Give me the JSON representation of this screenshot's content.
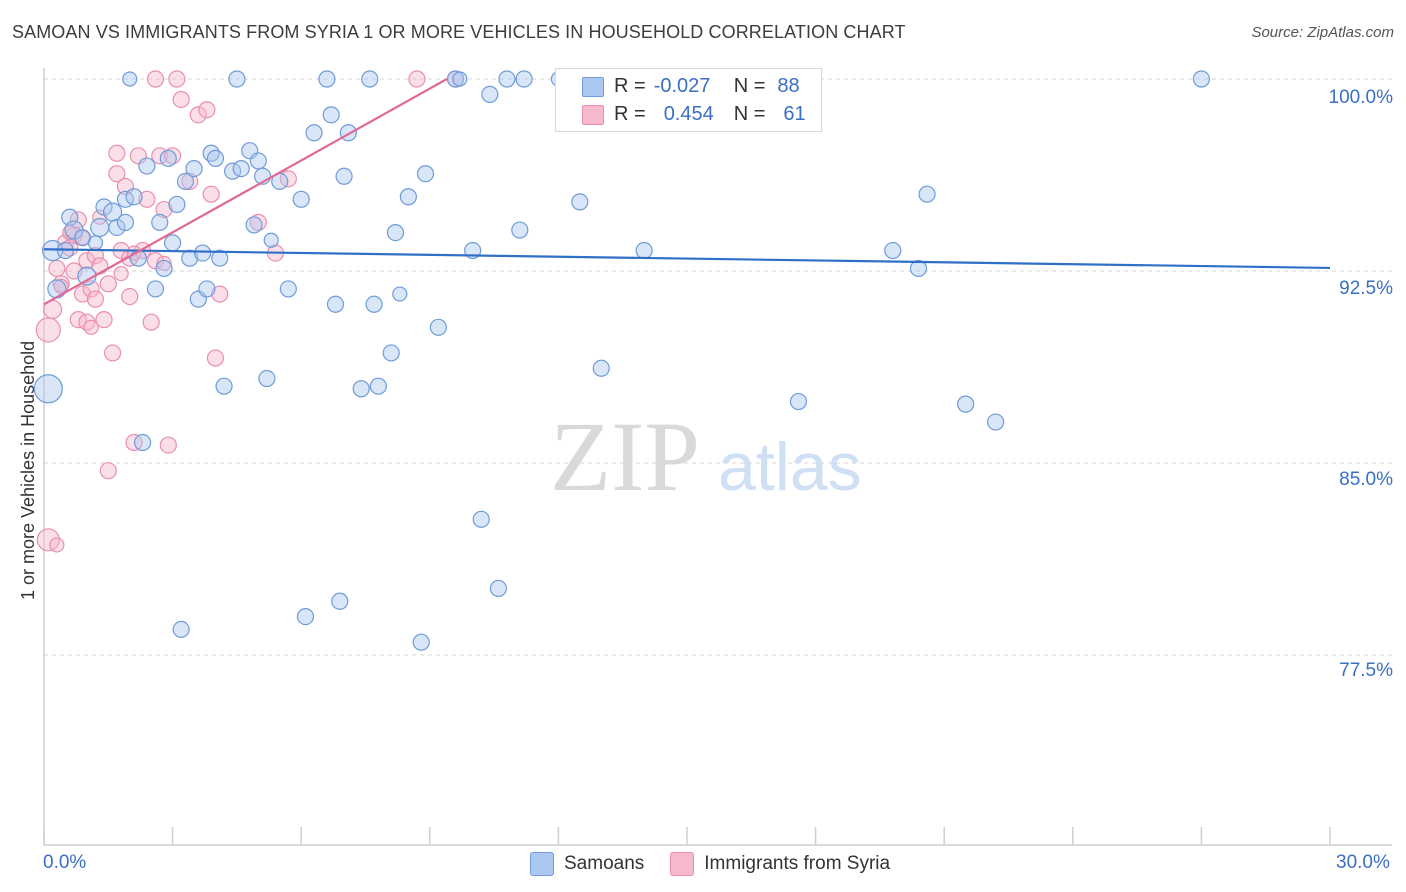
{
  "title": "SAMOAN VS IMMIGRANTS FROM SYRIA 1 OR MORE VEHICLES IN HOUSEHOLD CORRELATION CHART",
  "source": "Source: ZipAtlas.com",
  "watermark": {
    "zip": "ZIP",
    "atlas": "atlas"
  },
  "legend": {
    "r_label": "R =",
    "n_label": "N =",
    "samoans": {
      "r": "-0.027",
      "n": "88"
    },
    "syria": {
      "r": "0.454",
      "n": "61"
    }
  },
  "bottom_legend": {
    "samoans": "Samoans",
    "syria": "Immigrants from Syria"
  },
  "colors": {
    "samoans_fill": "#aac8f0",
    "samoans_stroke": "#6f9bd9",
    "samoans_line": "#2f6fc7",
    "syria_fill": "#f7b9cc",
    "syria_stroke": "#ea8fac",
    "syria_line": "#e06a95",
    "tick_text": "#3a6fc4",
    "grid": "#d4d4d4"
  },
  "chart_data": {
    "type": "scatter",
    "title": "SAMOAN VS IMMIGRANTS FROM SYRIA 1 OR MORE VEHICLES IN HOUSEHOLD CORRELATION CHART",
    "xlabel": "",
    "ylabel": "1 or more Vehicles in Household",
    "xlim": [
      0,
      30
    ],
    "ylim": [
      70.0,
      100.6
    ],
    "x_tick_labels": [
      "0.0%",
      "30.0%"
    ],
    "y_ticks": [
      77.5,
      85.0,
      92.5,
      100.0
    ],
    "y_tick_labels": [
      "77.5%",
      "85.0%",
      "92.5%",
      "100.0%"
    ],
    "grid": "horizontal dashed",
    "legend_position": "top-center",
    "series": [
      {
        "name": "Samoans",
        "trend": {
          "x0": 0.0,
          "y0": 93.35,
          "x1": 30.0,
          "y1": 92.62
        },
        "points": [
          [
            0.2,
            93.3,
            10
          ],
          [
            0.3,
            91.8,
            9
          ],
          [
            0.5,
            93.3,
            8
          ],
          [
            0.6,
            94.6,
            8
          ],
          [
            0.7,
            94.1,
            9
          ],
          [
            0.9,
            93.8,
            8
          ],
          [
            1.0,
            92.3,
            9
          ],
          [
            1.3,
            94.2,
            9
          ],
          [
            1.4,
            95.0,
            8
          ],
          [
            1.6,
            94.8,
            9
          ],
          [
            1.7,
            94.2,
            8
          ],
          [
            1.9,
            95.3,
            8
          ],
          [
            1.9,
            94.4,
            8
          ],
          [
            2.1,
            95.4,
            8
          ],
          [
            2.2,
            93.0,
            8
          ],
          [
            2.3,
            85.8,
            8
          ],
          [
            2.4,
            96.6,
            8
          ],
          [
            2.6,
            91.8,
            8
          ],
          [
            2.7,
            94.4,
            8
          ],
          [
            2.8,
            92.6,
            8
          ],
          [
            2.9,
            96.9,
            8
          ],
          [
            3.0,
            93.6,
            8
          ],
          [
            3.1,
            95.1,
            8
          ],
          [
            3.2,
            78.5,
            8
          ],
          [
            3.3,
            96.0,
            8
          ],
          [
            3.4,
            93.0,
            8
          ],
          [
            3.5,
            96.5,
            8
          ],
          [
            3.6,
            91.4,
            8
          ],
          [
            3.7,
            93.2,
            8
          ],
          [
            3.8,
            91.8,
            8
          ],
          [
            3.9,
            97.1,
            8
          ],
          [
            4.0,
            96.9,
            8
          ],
          [
            4.1,
            93.0,
            8
          ],
          [
            4.2,
            88.0,
            8
          ],
          [
            4.4,
            96.4,
            8
          ],
          [
            4.5,
            100.0,
            8
          ],
          [
            4.6,
            96.5,
            8
          ],
          [
            4.8,
            97.2,
            8
          ],
          [
            4.9,
            94.3,
            8
          ],
          [
            5.0,
            96.8,
            8
          ],
          [
            5.1,
            96.2,
            8
          ],
          [
            5.2,
            88.3,
            8
          ],
          [
            5.5,
            96.0,
            8
          ],
          [
            5.7,
            91.8,
            8
          ],
          [
            6.0,
            95.3,
            8
          ],
          [
            6.1,
            79.0,
            8
          ],
          [
            6.3,
            97.9,
            8
          ],
          [
            6.6,
            100.0,
            8
          ],
          [
            6.7,
            98.6,
            8
          ],
          [
            6.8,
            91.2,
            8
          ],
          [
            6.9,
            79.6,
            8
          ],
          [
            7.0,
            96.2,
            8
          ],
          [
            7.1,
            97.9,
            8
          ],
          [
            7.4,
            87.9,
            8
          ],
          [
            7.6,
            100.0,
            8
          ],
          [
            7.7,
            91.2,
            8
          ],
          [
            7.8,
            88.0,
            8
          ],
          [
            8.1,
            89.3,
            8
          ],
          [
            8.2,
            94.0,
            8
          ],
          [
            8.5,
            95.4,
            8
          ],
          [
            8.8,
            78.0,
            8
          ],
          [
            8.9,
            96.3,
            8
          ],
          [
            9.2,
            90.3,
            8
          ],
          [
            9.6,
            100.0,
            8
          ],
          [
            10.0,
            93.3,
            8
          ],
          [
            10.2,
            82.8,
            8
          ],
          [
            10.4,
            99.4,
            8
          ],
          [
            10.6,
            80.1,
            8
          ],
          [
            10.8,
            100.0,
            8
          ],
          [
            11.1,
            94.1,
            8
          ],
          [
            11.2,
            100.0,
            8
          ],
          [
            12.5,
            95.2,
            8
          ],
          [
            13.0,
            88.7,
            8
          ],
          [
            14.0,
            93.3,
            8
          ],
          [
            17.6,
            87.4,
            8
          ],
          [
            19.8,
            93.3,
            8
          ],
          [
            20.4,
            92.6,
            8
          ],
          [
            20.6,
            95.5,
            8
          ],
          [
            21.5,
            87.3,
            8
          ],
          [
            22.2,
            86.6,
            8
          ],
          [
            27.0,
            100.0,
            8
          ],
          [
            0.1,
            87.9,
            14
          ],
          [
            1.2,
            93.6,
            7
          ],
          [
            2.0,
            100.0,
            7
          ],
          [
            9.7,
            100.0,
            7
          ],
          [
            5.3,
            93.7,
            7
          ],
          [
            8.3,
            91.6,
            7
          ],
          [
            12.0,
            100.0,
            7
          ]
        ]
      },
      {
        "name": "Immigrants from Syria",
        "trend": {
          "x0": 0.0,
          "y0": 91.2,
          "x1": 9.4,
          "y1": 100.0
        },
        "points": [
          [
            0.1,
            90.2,
            12
          ],
          [
            0.1,
            82.0,
            11
          ],
          [
            0.2,
            91.0,
            9
          ],
          [
            0.3,
            92.6,
            8
          ],
          [
            0.4,
            92.0,
            8
          ],
          [
            0.5,
            93.6,
            8
          ],
          [
            0.6,
            93.4,
            8
          ],
          [
            0.7,
            92.5,
            8
          ],
          [
            0.7,
            93.9,
            8
          ],
          [
            0.8,
            90.6,
            8
          ],
          [
            0.8,
            94.5,
            8
          ],
          [
            0.9,
            91.6,
            8
          ],
          [
            1.0,
            92.9,
            8
          ],
          [
            1.0,
            90.5,
            8
          ],
          [
            1.1,
            91.8,
            8
          ],
          [
            1.2,
            91.4,
            8
          ],
          [
            1.2,
            93.1,
            8
          ],
          [
            1.3,
            92.7,
            8
          ],
          [
            1.4,
            90.6,
            8
          ],
          [
            1.5,
            92.0,
            8
          ],
          [
            1.5,
            84.7,
            8
          ],
          [
            1.6,
            89.3,
            8
          ],
          [
            1.7,
            97.1,
            8
          ],
          [
            1.7,
            96.3,
            8
          ],
          [
            1.8,
            93.3,
            8
          ],
          [
            1.9,
            95.8,
            8
          ],
          [
            2.0,
            93.0,
            8
          ],
          [
            2.0,
            91.5,
            8
          ],
          [
            2.1,
            85.8,
            8
          ],
          [
            2.2,
            97.0,
            8
          ],
          [
            2.3,
            93.3,
            8
          ],
          [
            2.4,
            95.3,
            8
          ],
          [
            2.5,
            90.5,
            8
          ],
          [
            2.6,
            92.9,
            8
          ],
          [
            2.7,
            97.0,
            8
          ],
          [
            2.8,
            94.9,
            8
          ],
          [
            2.9,
            85.7,
            8
          ],
          [
            3.0,
            97.0,
            8
          ],
          [
            3.1,
            100.0,
            8
          ],
          [
            3.2,
            99.2,
            8
          ],
          [
            3.4,
            96.0,
            8
          ],
          [
            3.6,
            98.6,
            8
          ],
          [
            3.8,
            98.8,
            8
          ],
          [
            3.9,
            95.5,
            8
          ],
          [
            4.0,
            89.1,
            8
          ],
          [
            4.1,
            91.6,
            8
          ],
          [
            5.0,
            94.4,
            8
          ],
          [
            5.4,
            93.2,
            8
          ],
          [
            5.7,
            96.1,
            8
          ],
          [
            8.7,
            100.0,
            8
          ],
          [
            9.6,
            100.0,
            8
          ],
          [
            2.6,
            100.0,
            8
          ],
          [
            0.4,
            91.9,
            7
          ],
          [
            0.9,
            93.8,
            7
          ],
          [
            1.1,
            90.3,
            7
          ],
          [
            0.3,
            81.8,
            7
          ],
          [
            1.3,
            94.6,
            7
          ],
          [
            2.1,
            93.2,
            7
          ],
          [
            0.6,
            94.0,
            7
          ],
          [
            1.8,
            92.4,
            7
          ],
          [
            2.8,
            92.8,
            7
          ]
        ]
      }
    ]
  }
}
